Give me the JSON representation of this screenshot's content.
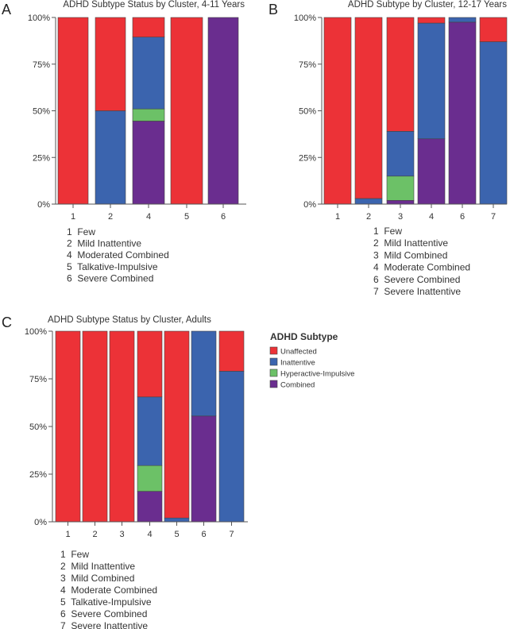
{
  "chart_data": [
    {
      "panel_letter": "A",
      "type": "bar",
      "stacked": true,
      "title": "ADHD Subtype Status by Cluster, 4-11 Years",
      "categories": [
        "1",
        "2",
        "4",
        "5",
        "6"
      ],
      "ylim": [
        0,
        100
      ],
      "yticks": [
        "0%",
        "25%",
        "50%",
        "75%",
        "100%"
      ],
      "series": [
        {
          "name": "Combined",
          "values": [
            0,
            0,
            44.5,
            0,
            100
          ]
        },
        {
          "name": "Hyperactive-Impulsive",
          "values": [
            0,
            0,
            6.5,
            0,
            0
          ]
        },
        {
          "name": "Inattentive",
          "values": [
            0,
            50,
            38.5,
            0,
            0
          ]
        },
        {
          "name": "Unaffected",
          "values": [
            100,
            50,
            10.5,
            100,
            0
          ]
        }
      ],
      "cluster_key": [
        "1  Few",
        "2  Mild Inattentive",
        "4  Moderated Combined",
        "5  Talkative-Impulsive",
        "6  Severe Combined"
      ]
    },
    {
      "panel_letter": "B",
      "type": "bar",
      "stacked": true,
      "title": "ADHD Subtype by Cluster, 12-17 Years",
      "categories": [
        "1",
        "2",
        "3",
        "4",
        "6",
        "7"
      ],
      "ylim": [
        0,
        100
      ],
      "yticks": [
        "0%",
        "25%",
        "50%",
        "75%",
        "100%"
      ],
      "series": [
        {
          "name": "Combined",
          "values": [
            0,
            0,
            2,
            35,
            97.5,
            0
          ]
        },
        {
          "name": "Hyperactive-Impulsive",
          "values": [
            0,
            0,
            13,
            0,
            0,
            0
          ]
        },
        {
          "name": "Inattentive",
          "values": [
            0,
            3,
            24,
            62,
            2.5,
            87
          ]
        },
        {
          "name": "Unaffected",
          "values": [
            100,
            97,
            61,
            3,
            0,
            13
          ]
        }
      ],
      "cluster_key": [
        "1  Few",
        "2  Mild Inattentive",
        "3  Mild Combined",
        "4  Moderate Combined",
        "6  Severe Combined",
        "7  Severe Inattentive"
      ]
    },
    {
      "panel_letter": "C",
      "type": "bar",
      "stacked": true,
      "title": "ADHD Subtype Status by Cluster, Adults",
      "categories": [
        "1",
        "2",
        "3",
        "4",
        "5",
        "6",
        "7"
      ],
      "ylim": [
        0,
        100
      ],
      "yticks": [
        "0%",
        "25%",
        "50%",
        "75%",
        "100%"
      ],
      "series": [
        {
          "name": "Combined",
          "values": [
            0,
            0,
            0,
            16,
            0,
            55.5,
            0
          ]
        },
        {
          "name": "Hyperactive-Impulsive",
          "values": [
            0,
            0,
            0,
            13.5,
            0,
            0,
            0
          ]
        },
        {
          "name": "Inattentive",
          "values": [
            0,
            0,
            0,
            36,
            2,
            44.5,
            79
          ]
        },
        {
          "name": "Unaffected",
          "values": [
            100,
            100,
            100,
            34.5,
            98,
            0,
            21
          ]
        }
      ],
      "cluster_key": [
        "1  Few",
        "2  Mild Inattentive",
        "3  Mild Combined",
        "4  Moderate Combined",
        "5  Talkative-Impulsive",
        "6  Severe Combined",
        "7  Severe Inattentive"
      ]
    }
  ],
  "legend": {
    "title": "ADHD Subtype",
    "items": [
      {
        "label": "Unaffected",
        "color": "#ec3237"
      },
      {
        "label": "Inattentive",
        "color": "#3b64ae"
      },
      {
        "label": "Hyperactive-Impulsive",
        "color": "#6cc167"
      },
      {
        "label": "Combined",
        "color": "#6a2d8f"
      }
    ]
  }
}
